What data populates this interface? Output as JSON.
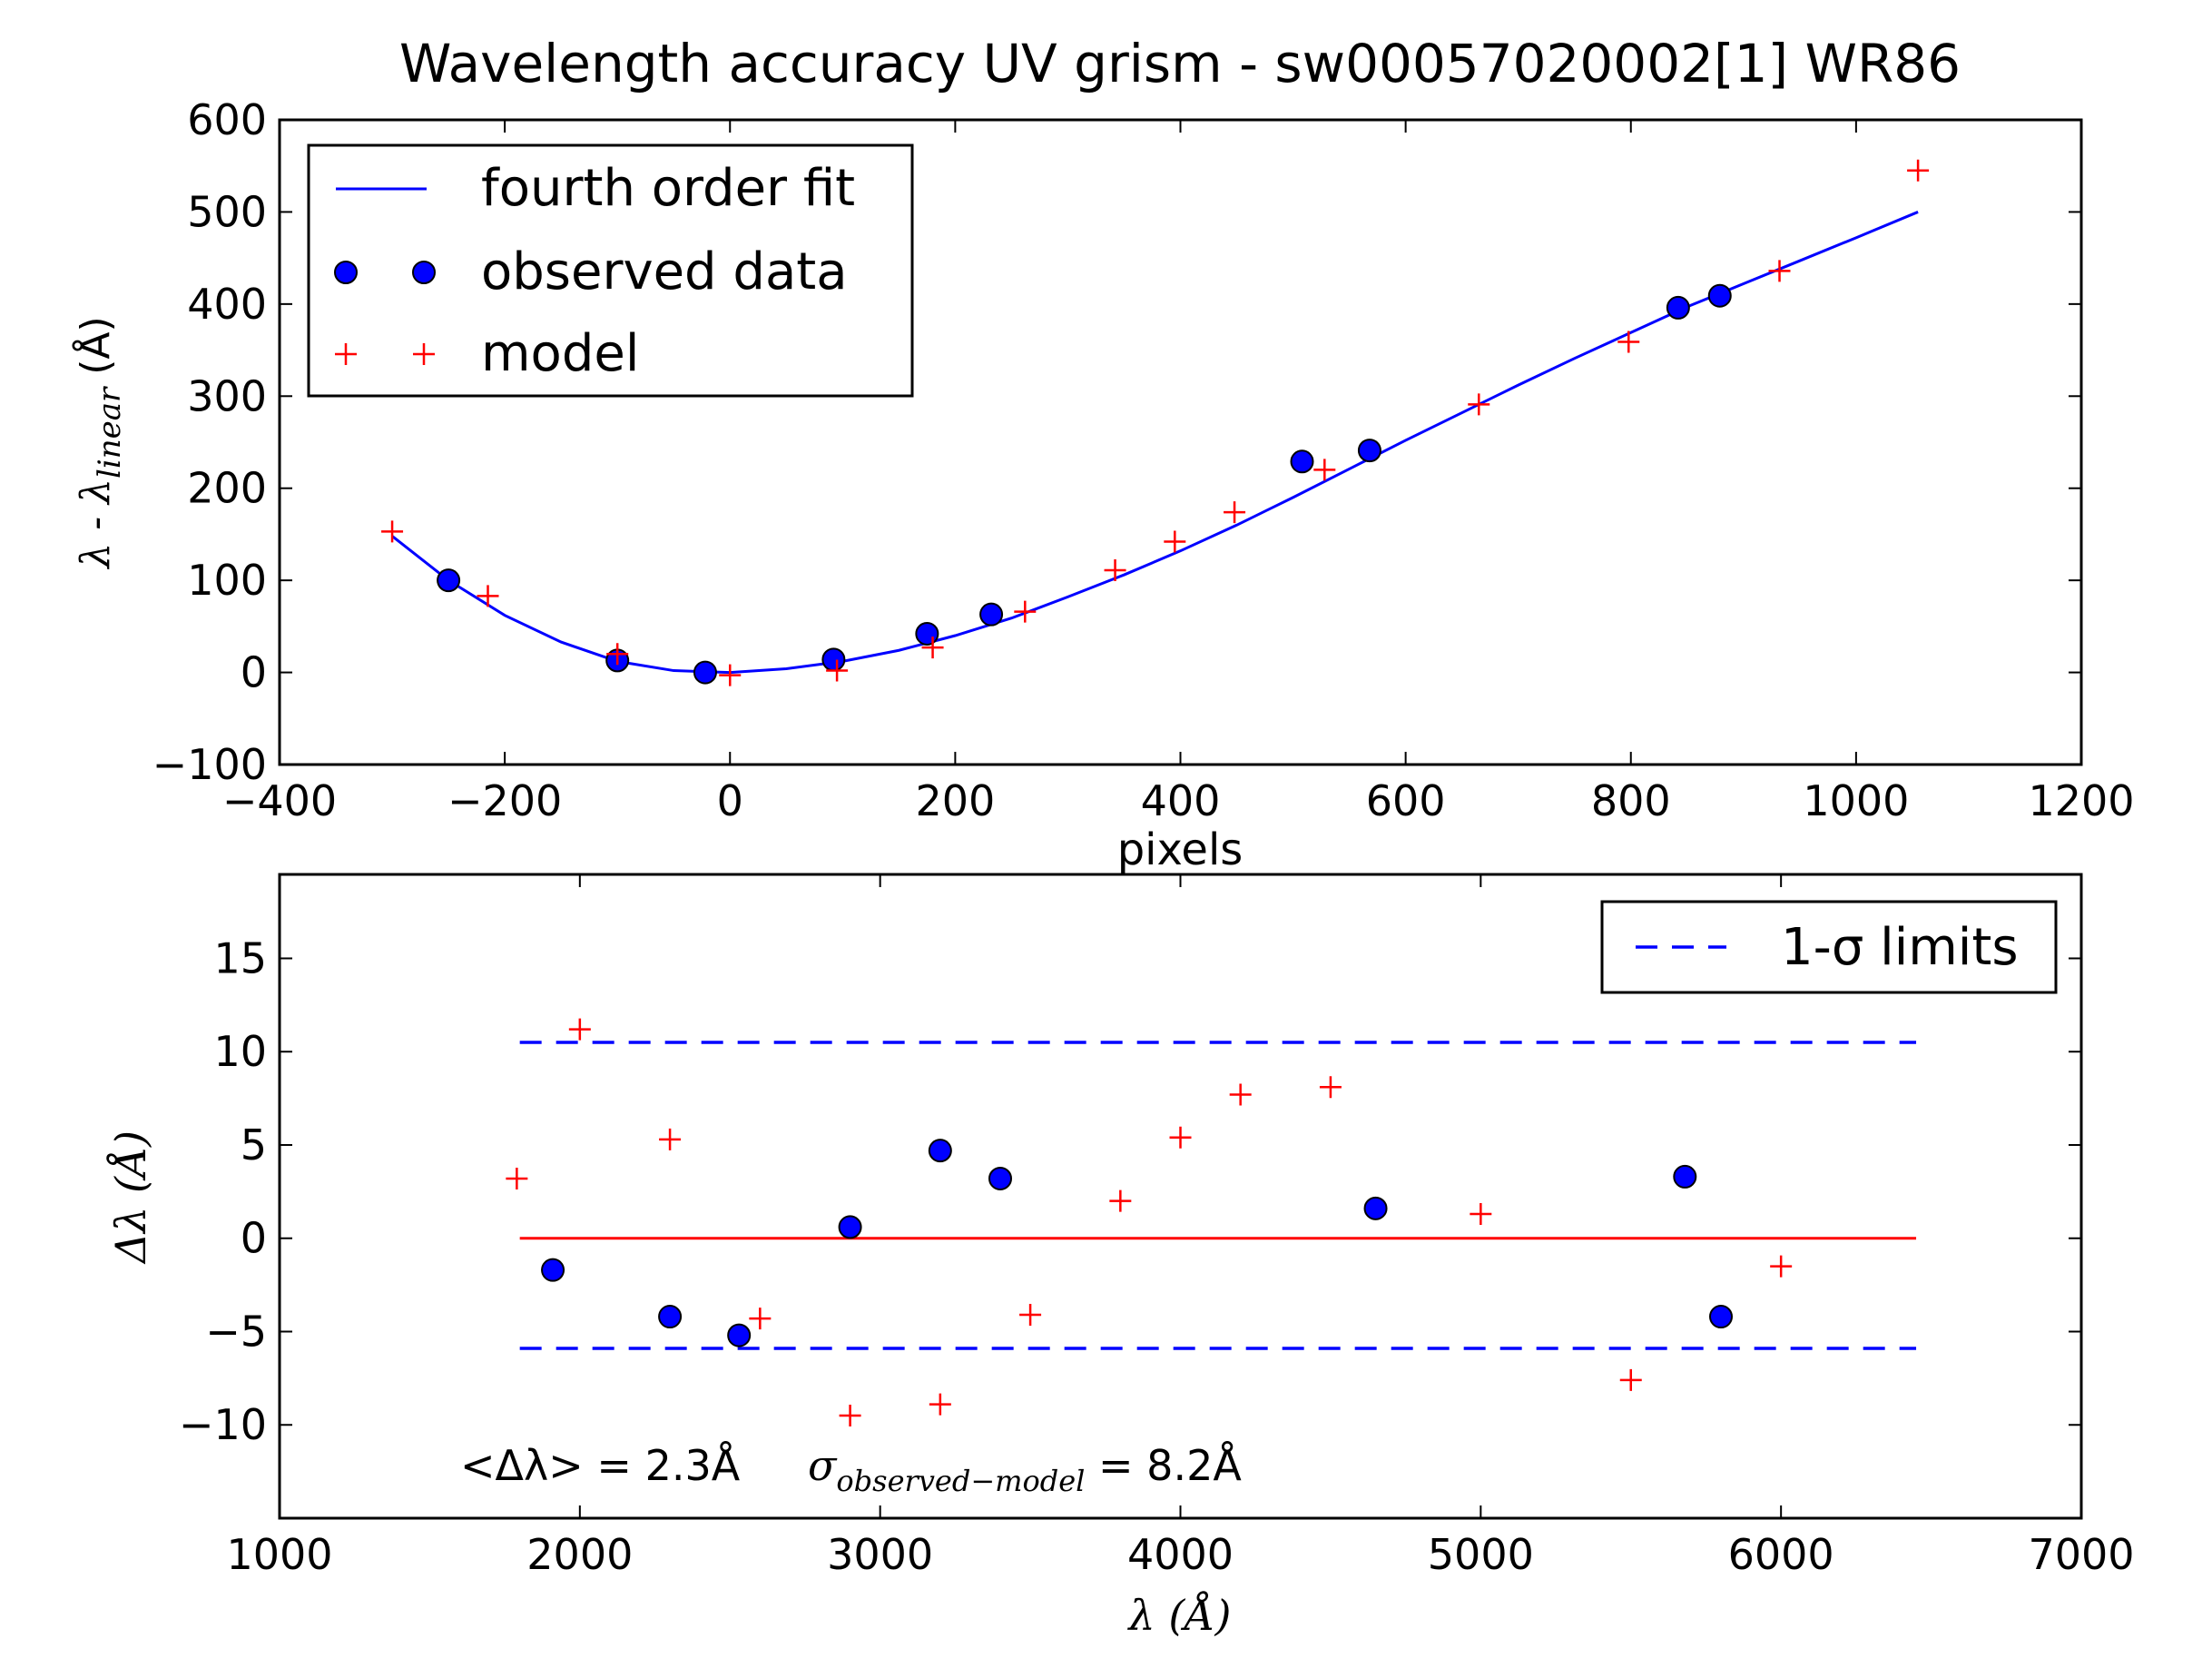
{
  "chart_data": [
    {
      "type": "scatter",
      "title": "Wavelength accuracy UV grism - sw00057020002[1] WR86",
      "xlabel": "pixels",
      "ylabel": "λ - λlinear  (Å)",
      "ylabel_parts": {
        "lead": "λ - λ",
        "sub": "linear",
        "tail": "  (Å)"
      },
      "xlim": [
        -400,
        1200
      ],
      "ylim": [
        -100,
        600
      ],
      "xticks": [
        -400,
        -200,
        0,
        200,
        400,
        600,
        800,
        1000,
        1200
      ],
      "yticks": [
        -100,
        0,
        100,
        200,
        300,
        400,
        500,
        600
      ],
      "xtick_labels": [
        "−400",
        "−200",
        "0",
        "200",
        "400",
        "600",
        "800",
        "1000",
        "1200"
      ],
      "ytick_labels": [
        "−100",
        "0",
        "100",
        "200",
        "300",
        "400",
        "500",
        "600"
      ],
      "legend": {
        "position": "upper-left",
        "entries": [
          "fourth order fit",
          "observed data",
          "model"
        ]
      },
      "series": [
        {
          "name": "fourth order fit",
          "kind": "line",
          "color": "#0000ff",
          "x": [
            -300,
            -250,
            -200,
            -150,
            -100,
            -50,
            0,
            50,
            100,
            150,
            200,
            250,
            300,
            350,
            400,
            450,
            500,
            550,
            600,
            650,
            700,
            750,
            800,
            850,
            900,
            950,
            1000,
            1055
          ],
          "y": [
            148,
            100,
            62,
            33,
            12,
            2,
            0,
            4,
            12,
            24,
            40,
            59,
            82,
            106,
            132,
            160,
            190,
            221,
            252,
            282,
            312,
            341,
            369,
            397,
            422,
            447,
            472,
            500
          ]
        },
        {
          "name": "observed data",
          "kind": "marker-circle",
          "color": "#0000ff",
          "x": [
            -250,
            -100,
            -22,
            92,
            175,
            232,
            508,
            568,
            842,
            879
          ],
          "y": [
            100,
            13,
            0,
            14,
            42,
            63,
            229,
            241,
            396,
            409
          ]
        },
        {
          "name": "model",
          "kind": "marker-plus",
          "color": "#ff0000",
          "x": [
            -300,
            -215,
            -100,
            0,
            95,
            180,
            262,
            342,
            395,
            448,
            528,
            665,
            798,
            932,
            1055
          ],
          "y": [
            153,
            83,
            20,
            -3,
            2,
            27,
            66,
            111,
            142,
            174,
            220,
            291,
            359,
            436,
            545
          ]
        }
      ]
    },
    {
      "type": "scatter",
      "xlabel": "λ (Å)",
      "ylabel": "Δλ (Å)",
      "xlim": [
        1000,
        7000
      ],
      "ylim": [
        -15,
        19.5
      ],
      "xticks": [
        1000,
        2000,
        3000,
        4000,
        5000,
        6000,
        7000
      ],
      "yticks": [
        -10,
        -5,
        0,
        5,
        10,
        15
      ],
      "xtick_labels": [
        "1000",
        "2000",
        "3000",
        "4000",
        "5000",
        "6000",
        "7000"
      ],
      "ytick_labels": [
        "−10",
        "−5",
        "0",
        "5",
        "10",
        "15"
      ],
      "legend": {
        "position": "upper-right",
        "entries": [
          "1-σ limits"
        ]
      },
      "annotation": {
        "mean_text": "<Δλ> = 2.3Å",
        "sigma_symbol": "σ",
        "sigma_sub": "observed−model",
        "sigma_text": " = 8.2Å"
      },
      "series": [
        {
          "name": "1-σ limits",
          "kind": "dashed-line",
          "color": "#0000ff",
          "upper": {
            "x": [
              1800,
              6450
            ],
            "y": [
              10.5,
              10.5
            ]
          },
          "lower": {
            "x": [
              1800,
              6450
            ],
            "y": [
              -5.9,
              -5.9
            ]
          }
        },
        {
          "kind": "line",
          "color": "#ff0000",
          "x": [
            1800,
            6450
          ],
          "y": [
            0,
            0
          ]
        },
        {
          "kind": "marker-circle",
          "color": "#0000ff",
          "x": [
            1910,
            2300,
            2530,
            2900,
            3200,
            3400,
            4650,
            5680,
            5800
          ],
          "y": [
            -1.7,
            -4.2,
            -5.2,
            0.6,
            4.7,
            3.2,
            1.6,
            3.3,
            -4.2
          ]
        },
        {
          "kind": "marker-plus",
          "color": "#ff0000",
          "x": [
            1790,
            2000,
            2300,
            2600,
            2900,
            3200,
            3500,
            3800,
            4000,
            4200,
            4500,
            5000,
            5500,
            6000
          ],
          "y": [
            3.2,
            11.2,
            5.3,
            -4.3,
            -9.5,
            -8.9,
            -4.1,
            2.0,
            5.4,
            7.7,
            8.1,
            1.3,
            -7.6,
            -1.5
          ]
        }
      ]
    }
  ]
}
